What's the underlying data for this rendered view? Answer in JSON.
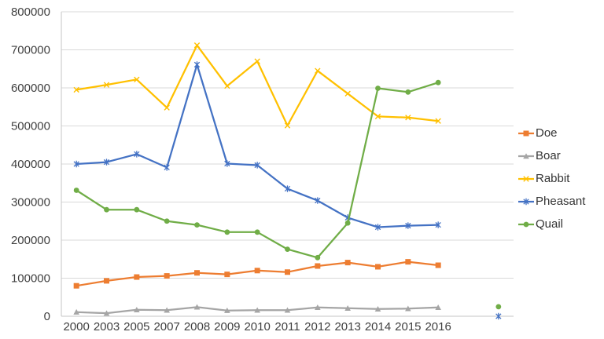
{
  "figure": {
    "background": "#FFFFFF"
  },
  "chart_data": {
    "type": "line",
    "title": "",
    "xlabel": "",
    "ylabel": "",
    "categories": [
      "2000",
      "2003",
      "2005",
      "2007",
      "2008",
      "2009",
      "2010",
      "2011",
      "2012",
      "2013",
      "2014",
      "2015",
      "2016",
      "",
      ""
    ],
    "series": [
      {
        "name": "Doe",
        "color": "#ED7D31",
        "marker": "square",
        "values": [
          80000,
          93000,
          103000,
          106000,
          114000,
          110000,
          120000,
          116000,
          132000,
          141000,
          130000,
          143000,
          134000,
          null,
          null
        ]
      },
      {
        "name": "Boar",
        "color": "#A5A5A5",
        "marker": "triangle",
        "values": [
          11000,
          8000,
          17000,
          16000,
          24000,
          15000,
          16000,
          16000,
          23000,
          21000,
          19000,
          20000,
          23000,
          null,
          null
        ]
      },
      {
        "name": "Rabbit",
        "color": "#FFC000",
        "marker": "x",
        "values": [
          595000,
          608000,
          622000,
          548000,
          712000,
          605000,
          670000,
          501000,
          645000,
          585000,
          525000,
          522000,
          513000,
          null,
          null
        ]
      },
      {
        "name": "Pheasant",
        "color": "#4472C4",
        "marker": "star",
        "values": [
          400000,
          405000,
          426000,
          391000,
          661000,
          401000,
          397000,
          335000,
          304000,
          259000,
          234000,
          238000,
          240000,
          null,
          0
        ]
      },
      {
        "name": "Quail",
        "color": "#70AD47",
        "marker": "circle",
        "values": [
          331000,
          280000,
          280000,
          250000,
          240000,
          221000,
          221000,
          176000,
          154000,
          245000,
          599000,
          589000,
          614000,
          null,
          25000
        ]
      }
    ],
    "ylim": [
      0,
      800000
    ],
    "ytick_step": 100000,
    "y_tick_labels": [
      "0",
      "100000",
      "200000",
      "300000",
      "400000",
      "500000",
      "600000",
      "700000",
      "800000"
    ],
    "grid": "horizontal-only",
    "legend_position": "right",
    "colors": {
      "gridline": "#D9D9D9",
      "axis": "#C6C6C6",
      "tick_label": "#3F3F3F",
      "legend_label": "#333333",
      "background": "#FFFFFF"
    }
  }
}
